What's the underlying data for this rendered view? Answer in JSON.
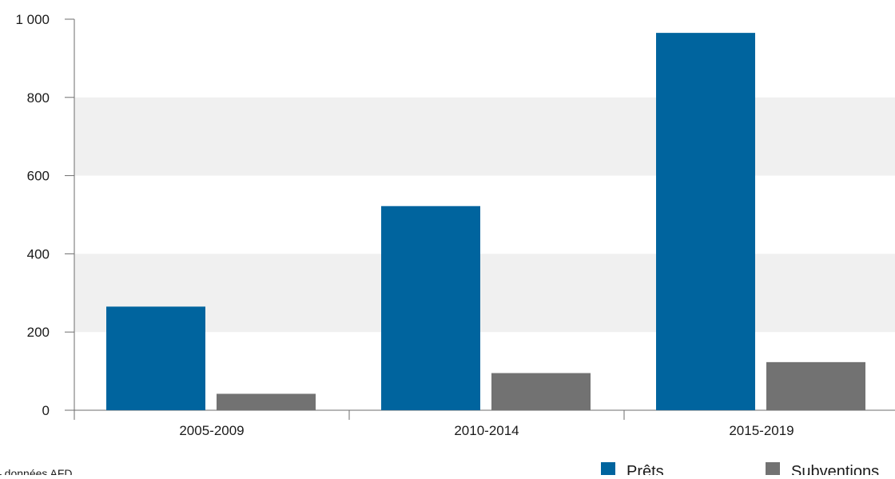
{
  "source_note": "– données AFD",
  "colors": {
    "prets": "#00649E",
    "subventions": "#727272",
    "band": "#F0F0F0",
    "axis": "#6E6E6E",
    "text": "#1A1A1A"
  },
  "chart_data": {
    "type": "bar",
    "categories": [
      "2005-2009",
      "2010-2014",
      "2015-2019"
    ],
    "series": [
      {
        "name": "Prêts",
        "values": [
          265,
          522,
          965
        ]
      },
      {
        "name": "Subventions",
        "values": [
          42,
          95,
          123
        ]
      }
    ],
    "ylim": [
      0,
      1000
    ],
    "yticks": [
      0,
      200,
      400,
      600,
      800,
      1000
    ],
    "ytick_labels": [
      "0",
      "200",
      "400",
      "600",
      "800",
      "1 000"
    ],
    "grid": "alternating horizontal bands",
    "legend_position": "bottom-right"
  }
}
